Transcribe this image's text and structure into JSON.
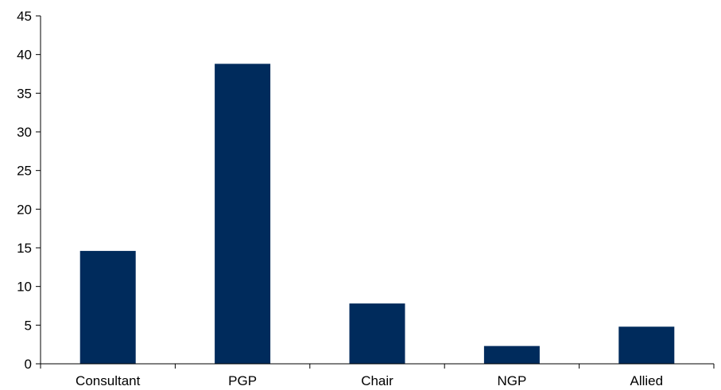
{
  "chart_data": {
    "type": "bar",
    "title": "",
    "xlabel": "",
    "ylabel": "",
    "categories": [
      "Consultant",
      "PGP",
      "Chair",
      "NGP",
      "Allied"
    ],
    "values": [
      14.6,
      38.8,
      7.8,
      2.3,
      4.8
    ],
    "ylim": [
      0,
      45
    ],
    "yticks": [
      0,
      5,
      10,
      15,
      20,
      25,
      30,
      35,
      40,
      45
    ],
    "ytick_labels": [
      "0",
      "5",
      "10",
      "15",
      "20",
      "25",
      "30",
      "35",
      "40",
      "45"
    ],
    "grid": false,
    "legend": "none",
    "bar_color": "#002B5C"
  }
}
